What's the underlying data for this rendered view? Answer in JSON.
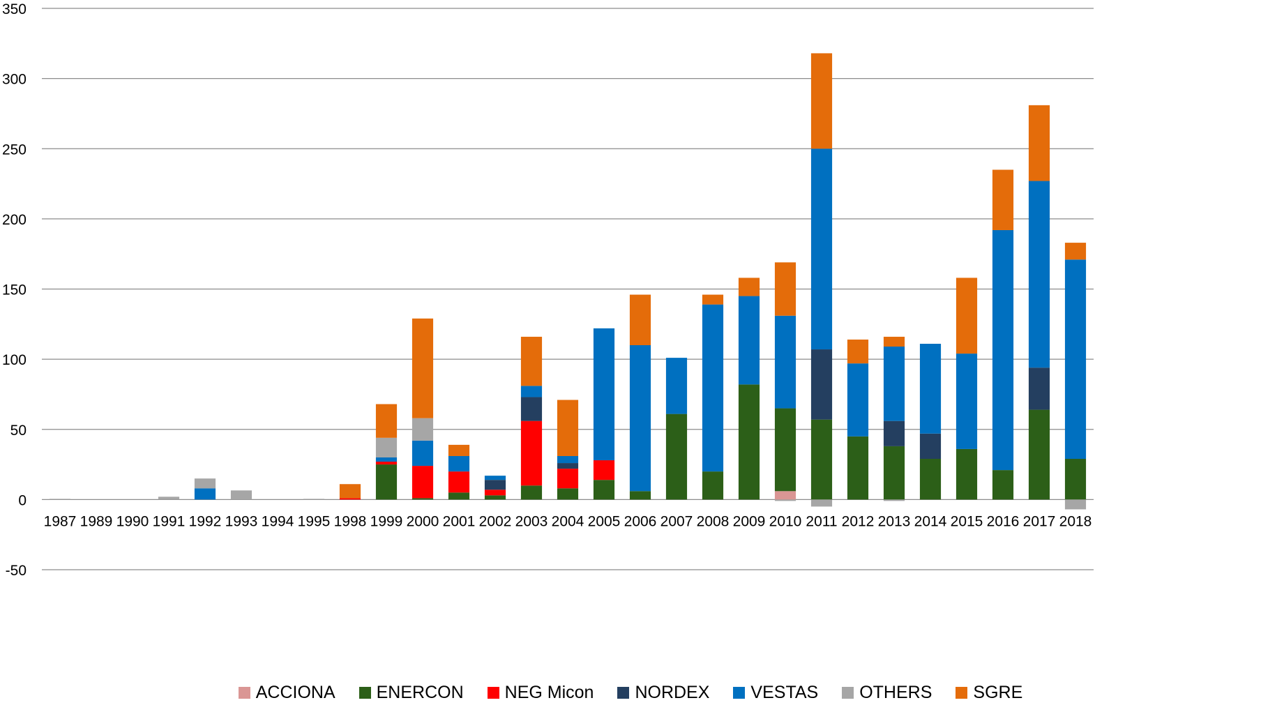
{
  "chart_data": {
    "type": "bar",
    "stacked": true,
    "title": "",
    "xlabel": "",
    "ylabel": "",
    "ylim": [
      -50,
      350
    ],
    "yticks": [
      -50,
      0,
      50,
      100,
      150,
      200,
      250,
      300,
      350
    ],
    "grid": true,
    "legend_position": "bottom",
    "categories": [
      "1987",
      "1989",
      "1990",
      "1991",
      "1992",
      "1993",
      "1994",
      "1995",
      "1998",
      "1999",
      "2000",
      "2001",
      "2002",
      "2003",
      "2004",
      "2005",
      "2006",
      "2007",
      "2008",
      "2009",
      "2010",
      "2011",
      "2012",
      "2013",
      "2014",
      "2015",
      "2016",
      "2017",
      "2018"
    ],
    "series": [
      {
        "name": "ACCIONA",
        "color": "#DA9694",
        "values": [
          0,
          0,
          0,
          0,
          0,
          0,
          0,
          0,
          0,
          0,
          0,
          0,
          0,
          0,
          0,
          0,
          0,
          0,
          0,
          0,
          6,
          0,
          0,
          0,
          0,
          0,
          0,
          0,
          0
        ]
      },
      {
        "name": "ENERCON",
        "color": "#2C5F18",
        "values": [
          0,
          0,
          0,
          0,
          0,
          0,
          0,
          0,
          0,
          25,
          1,
          5,
          3,
          10,
          8,
          14,
          6,
          61,
          20,
          82,
          59,
          57,
          45,
          38,
          29,
          36,
          21,
          64,
          29
        ]
      },
      {
        "name": "NEG Micon",
        "color": "#FF0000",
        "values": [
          0,
          0,
          0,
          0,
          0,
          0,
          0,
          0,
          1,
          2,
          23,
          15,
          4,
          46,
          14,
          14,
          0,
          0,
          0,
          0,
          0,
          0,
          0,
          0,
          0,
          0,
          0,
          0,
          0
        ]
      },
      {
        "name": "NORDEX",
        "color": "#243F60",
        "values": [
          0,
          0,
          0,
          0,
          0,
          0,
          0,
          0,
          0,
          0,
          0,
          0,
          7,
          17,
          4,
          0,
          0,
          0,
          0,
          0,
          0,
          50,
          0,
          18,
          18,
          0,
          0,
          30,
          0
        ]
      },
      {
        "name": "VESTAS",
        "color": "#0070C0",
        "values": [
          0,
          0,
          0,
          0,
          8,
          0,
          0,
          0,
          0,
          3,
          18,
          11,
          3,
          8,
          5,
          94,
          104,
          40,
          119,
          63,
          66,
          143,
          52,
          53,
          64,
          68,
          171,
          133,
          142
        ]
      },
      {
        "name": "OTHERS",
        "color": "#A6A6A6",
        "values": [
          0.5,
          0,
          0,
          2,
          7,
          6.5,
          0,
          0.5,
          0,
          14,
          16,
          0,
          0,
          0,
          0,
          0,
          0,
          0,
          0,
          0,
          -1,
          -5,
          0,
          -1,
          0,
          0,
          0,
          0,
          -7
        ]
      },
      {
        "name": "SGRE",
        "color": "#E46C0A",
        "values": [
          0,
          0,
          0,
          0,
          0,
          0,
          0,
          0,
          10,
          24,
          71,
          8,
          0,
          35,
          40,
          0,
          36,
          0,
          7,
          13,
          38,
          68,
          17,
          7,
          0,
          54,
          43,
          54,
          12
        ]
      }
    ]
  }
}
